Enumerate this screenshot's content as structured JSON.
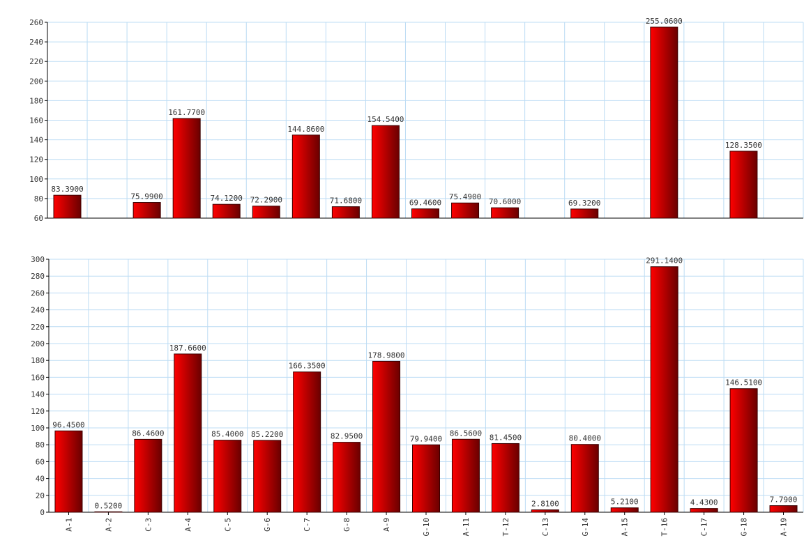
{
  "colors": {
    "background": "#ffffff",
    "grid": "#bcdcf4",
    "axis": "#000000",
    "bar_light": "#ff0000",
    "bar_dark": "#6a0000",
    "bar_stroke": "#3a0000",
    "text": "#333333"
  },
  "chart_data": [
    {
      "type": "bar",
      "title": "",
      "xlabel": "",
      "ylabel": "",
      "ylim": [
        60,
        260
      ],
      "ytick_step": 20,
      "grid": true,
      "categories": [
        "A-1",
        "A-2",
        "C-3",
        "A-4",
        "C-5",
        "G-6",
        "C-7",
        "G-8",
        "A-9",
        "G-10",
        "A-11",
        "T-12",
        "C-13",
        "G-14",
        "A-15",
        "T-16",
        "C-17",
        "G-18",
        "A-19"
      ],
      "values": [
        83.39,
        null,
        75.99,
        161.77,
        74.12,
        72.29,
        144.86,
        71.68,
        154.54,
        69.46,
        75.49,
        70.6,
        null,
        69.32,
        null,
        255.06,
        null,
        128.35,
        null
      ],
      "value_labels": [
        "83.3900",
        "",
        "75.9900",
        "161.7700",
        "74.1200",
        "72.2900",
        "144.8600",
        "71.6800",
        "154.5400",
        "69.4600",
        "75.4900",
        "70.6000",
        "",
        "69.3200",
        "",
        "255.0600",
        "",
        "128.3500",
        ""
      ],
      "show_x_tick_labels": false
    },
    {
      "type": "bar",
      "title": "",
      "xlabel": "",
      "ylabel": "",
      "ylim": [
        0,
        300
      ],
      "ytick_step": 20,
      "grid": true,
      "categories": [
        "A-1",
        "A-2",
        "C-3",
        "A-4",
        "C-5",
        "G-6",
        "C-7",
        "G-8",
        "A-9",
        "G-10",
        "A-11",
        "T-12",
        "C-13",
        "G-14",
        "A-15",
        "T-16",
        "C-17",
        "G-18",
        "A-19"
      ],
      "values": [
        96.45,
        0.52,
        86.46,
        187.66,
        85.4,
        85.22,
        166.35,
        82.95,
        178.98,
        79.94,
        86.56,
        81.45,
        2.81,
        80.4,
        5.21,
        291.14,
        4.43,
        146.51,
        7.79
      ],
      "value_labels": [
        "96.4500",
        "0.5200",
        "86.4600",
        "187.6600",
        "85.4000",
        "85.2200",
        "166.3500",
        "82.9500",
        "178.9800",
        "79.9400",
        "86.5600",
        "81.4500",
        "2.8100",
        "80.4000",
        "5.2100",
        "291.1400",
        "4.4300",
        "146.5100",
        "7.7900"
      ],
      "show_x_tick_labels": true
    }
  ]
}
